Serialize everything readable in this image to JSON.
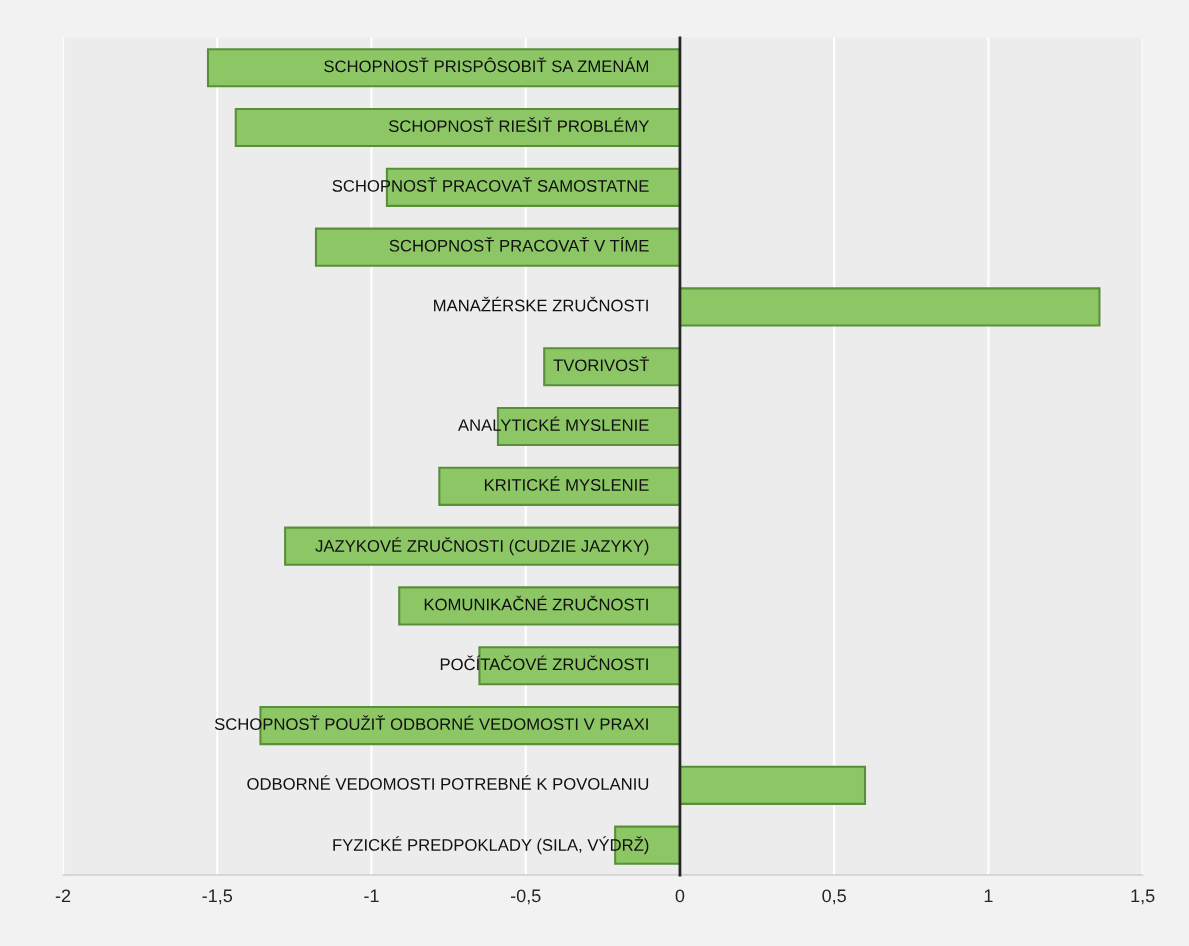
{
  "chart_data": {
    "type": "bar",
    "orientation": "horizontal",
    "categories": [
      "SCHOPNOSŤ PRISPÔSOBIŤ SA ZMENÁM",
      "SCHOPNOSŤ RIEŠIŤ PROBLÉMY",
      "SCHOPNOSŤ PRACOVAŤ SAMOSTATNE",
      "SCHOPNOSŤ PRACOVAŤ V TÍME",
      "MANAŽÉRSKE ZRUČNOSTI",
      "TVORIVOSŤ",
      "ANALYTICKÉ MYSLENIE",
      "KRITICKÉ MYSLENIE",
      "JAZYKOVÉ ZRUČNOSTI (CUDZIE JAZYKY)",
      "KOMUNIKAČNÉ ZRUČNOSTI",
      "POČÍTAČOVÉ ZRUČNOSTI",
      "SCHOPNOSŤ POUŽIŤ ODBORNÉ VEDOMOSTI V PRAXI",
      "ODBORNÉ VEDOMOSTI POTREBNÉ K POVOLANIU",
      "FYZICKÉ PREDPOKLADY (SILA, VÝDRŽ)"
    ],
    "values": [
      -1.53,
      -1.44,
      -0.95,
      -1.18,
      1.36,
      -0.44,
      -0.59,
      -0.78,
      -1.28,
      -0.91,
      -0.65,
      -1.36,
      0.6,
      -0.21
    ],
    "color": "#8cc665",
    "xlim": [
      -2,
      1.5
    ],
    "xticks": [
      {
        "value": -2,
        "label": "-2"
      },
      {
        "value": -1.5,
        "label": "-1,5"
      },
      {
        "value": -1,
        "label": "-1"
      },
      {
        "value": -0.5,
        "label": "-0,5"
      },
      {
        "value": 0,
        "label": "0"
      },
      {
        "value": 0.5,
        "label": "0,5"
      },
      {
        "value": 1,
        "label": "1"
      },
      {
        "value": 1.5,
        "label": "1,5"
      }
    ],
    "grid": "x"
  }
}
